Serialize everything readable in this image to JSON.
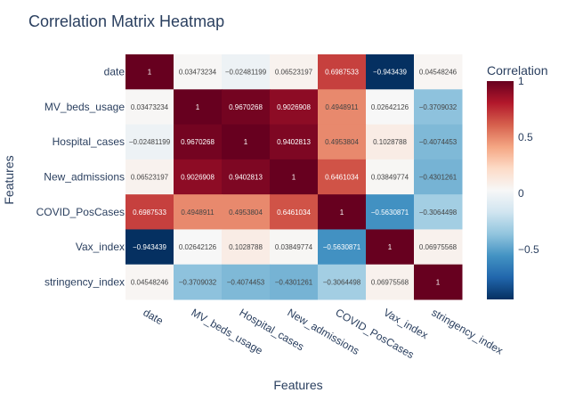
{
  "chart_data": {
    "type": "heatmap",
    "title": "Correlation Matrix Heatmap",
    "xlabel": "Features",
    "ylabel": "Features",
    "features": [
      "date",
      "MV_beds_usage",
      "Hospital_cases",
      "New_admissions",
      "COVID_PosCases",
      "Vax_index",
      "stringency_index"
    ],
    "values": [
      [
        1,
        0.03473234,
        -0.02481199,
        0.06523197,
        0.6987533,
        -0.943439,
        0.04548246
      ],
      [
        0.03473234,
        1,
        0.9670268,
        0.9026908,
        0.4948911,
        0.02642126,
        -0.3709032
      ],
      [
        -0.02481199,
        0.9670268,
        1,
        0.9402813,
        0.4953804,
        0.1028788,
        -0.4074453
      ],
      [
        0.06523197,
        0.9026908,
        0.9402813,
        1,
        0.6461034,
        0.03849774,
        -0.4301261
      ],
      [
        0.6987533,
        0.4948911,
        0.4953804,
        0.6461034,
        1,
        -0.5630871,
        -0.3064498
      ],
      [
        -0.943439,
        0.02642126,
        0.1028788,
        0.03849774,
        -0.5630871,
        1,
        0.06975568
      ],
      [
        0.04548246,
        -0.3709032,
        -0.4074453,
        -0.4301261,
        -0.3064498,
        0.06975568,
        1
      ]
    ],
    "zlim": [
      -0.943439,
      1
    ],
    "colorscale": "RdBu_r",
    "colorbar": {
      "title": "Correlation",
      "ticks": [
        1,
        0.5,
        0,
        -0.5
      ],
      "tick_labels": [
        "1",
        "0.5",
        "0",
        "−0.5"
      ]
    },
    "colors": {
      "high": "#67001f",
      "mid": "#f7f7f7",
      "low": "#053061",
      "text": "#2a3f5f"
    }
  }
}
